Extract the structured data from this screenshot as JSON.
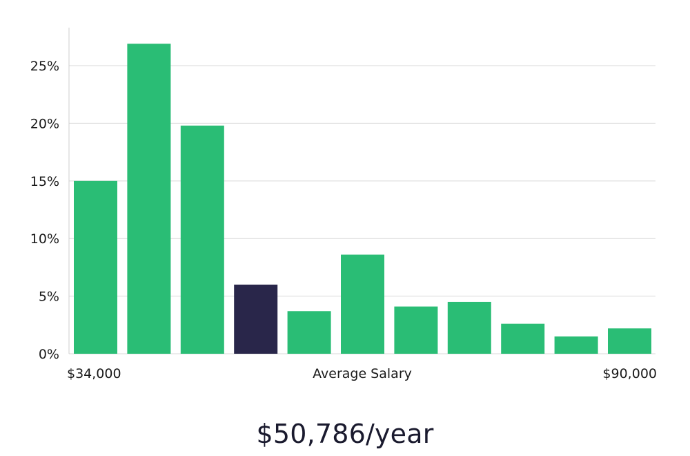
{
  "chart_data": {
    "type": "bar",
    "xlabel": "Average Salary",
    "x_min_label": "$34,000",
    "x_max_label": "$90,000",
    "ylabel": "",
    "ylim": [
      0,
      28.3
    ],
    "y_ticks": [
      0,
      5,
      10,
      15,
      20,
      25
    ],
    "y_tick_labels": [
      "0%",
      "5%",
      "10%",
      "15%",
      "20%",
      "25%"
    ],
    "grid": true,
    "values": [
      15.0,
      26.9,
      19.8,
      6.0,
      3.7,
      8.6,
      4.1,
      4.5,
      2.6,
      1.5,
      2.2
    ],
    "highlight_index": 3,
    "colors": {
      "bar": "#2abd75",
      "highlight": "#29264a",
      "grid": "#d9d9d9",
      "axis": "#cccccc"
    }
  },
  "summary": {
    "average_salary": "$50,786/year"
  }
}
